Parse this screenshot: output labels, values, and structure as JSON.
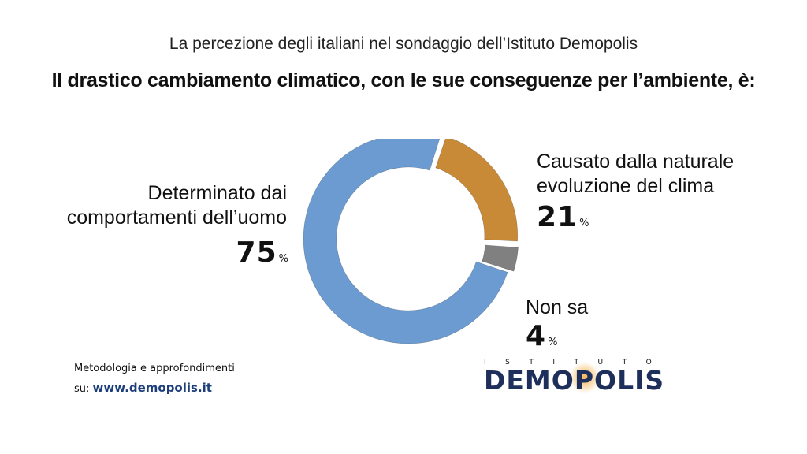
{
  "header": {
    "subtitle": "La percezione degli italiani nel sondaggio dell’Istituto Demopolis",
    "title": "Il drastico cambiamento climatico, con le sue conseguenze per l’ambiente, è:"
  },
  "chart_data": {
    "type": "pie",
    "variant": "donut",
    "categories": [
      "Determinato dai comportamenti dell’uomo",
      "Causato dalla naturale evoluzione del clima",
      "Non sa"
    ],
    "values": [
      75,
      21,
      4
    ],
    "unit": "%",
    "colors": [
      "#6b9bd0",
      "#c98a38",
      "#808080"
    ],
    "exploded": [
      false,
      true,
      true
    ],
    "legend": "none"
  },
  "labels": {
    "left": {
      "line1": "Determinato dai",
      "line2": "comportamenti dell’uomo",
      "value": "75",
      "pct": "%"
    },
    "top_right": {
      "line1": "Causato dalla naturale",
      "line2": "evoluzione del clima",
      "value": "21",
      "pct": "%"
    },
    "bottom_right": {
      "line1": "Non sa",
      "value": "4",
      "pct": "%"
    }
  },
  "footer": {
    "line1": "Metodologia e approfondimenti",
    "prefix": "su: ",
    "url": "www.demopolis.it"
  },
  "logo": {
    "top": "ISTITUTO",
    "main": "DEMOPOLIS"
  }
}
